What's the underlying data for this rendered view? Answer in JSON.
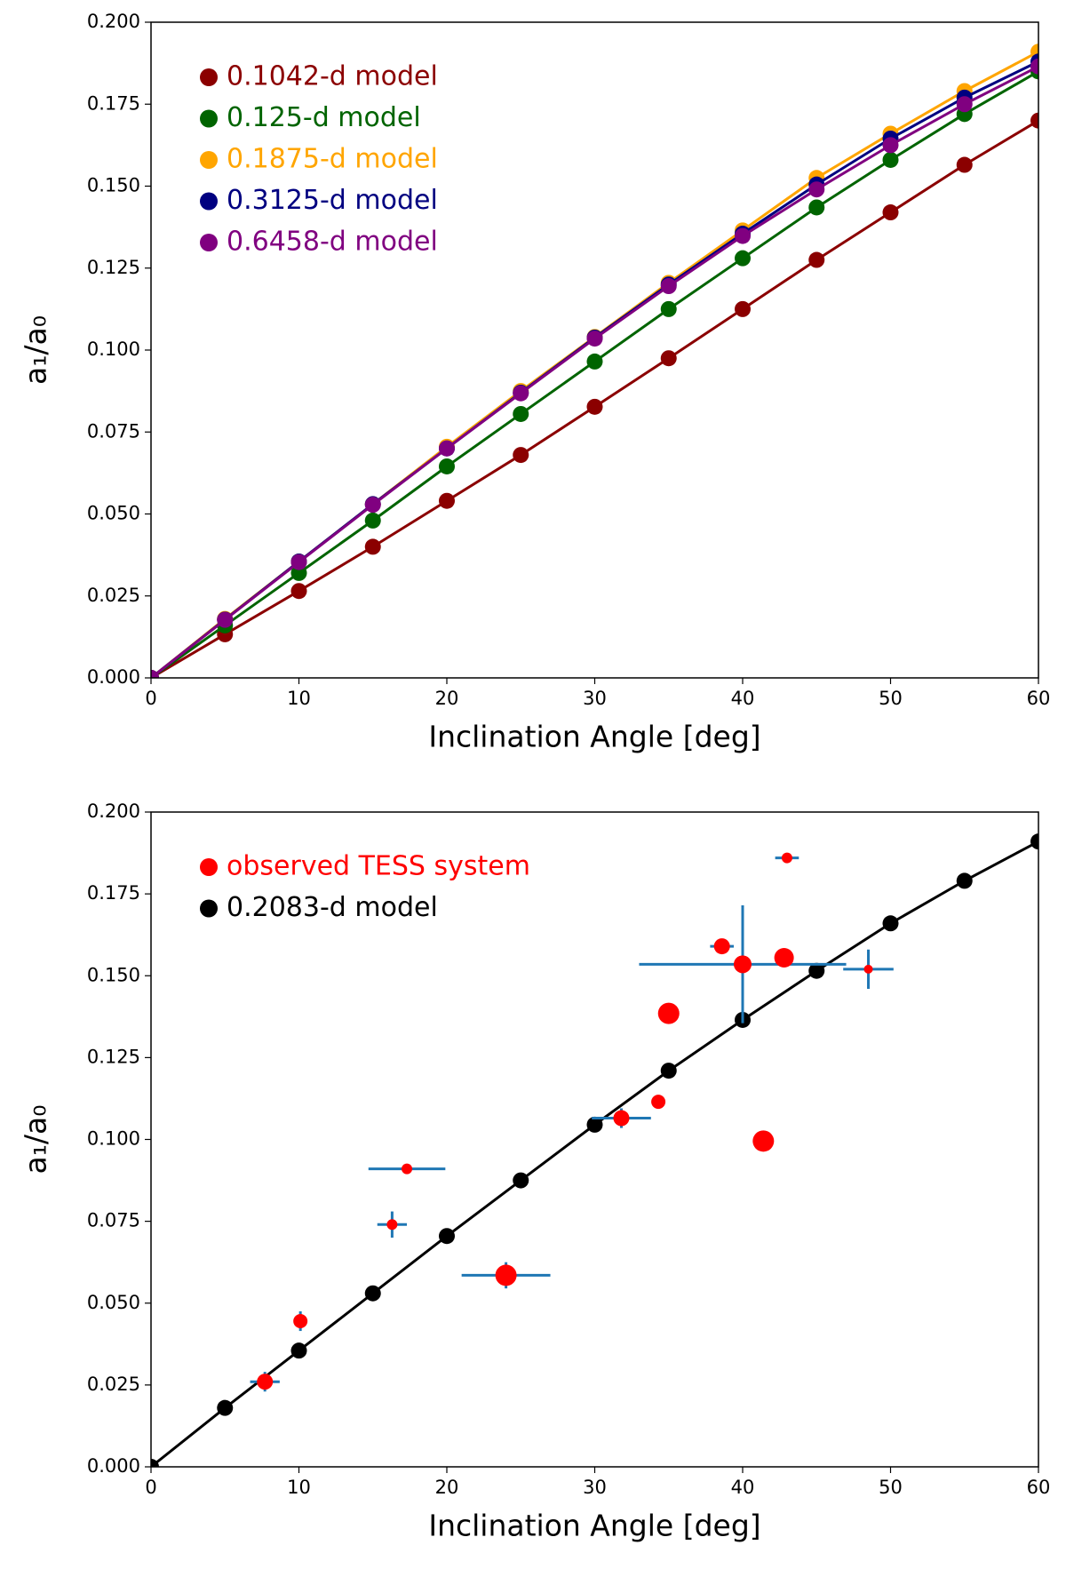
{
  "chart_data": [
    {
      "type": "line",
      "xlabel": "Inclination Angle [deg]",
      "ylabel": "a₁/a₀",
      "xlim": [
        0,
        60
      ],
      "ylim": [
        0,
        0.2
      ],
      "xticks": [
        0,
        10,
        20,
        30,
        40,
        50,
        60
      ],
      "yticks": [
        {
          "value": 0,
          "label": "0.000"
        },
        {
          "value": 0.025,
          "label": "0.025"
        },
        {
          "value": 0.05,
          "label": "0.050"
        },
        {
          "value": 0.075,
          "label": "0.075"
        },
        {
          "value": 0.1,
          "label": "0.100"
        },
        {
          "value": 0.125,
          "label": "0.125"
        },
        {
          "value": 0.15,
          "label": "0.150"
        },
        {
          "value": 0.175,
          "label": "0.175"
        },
        {
          "value": 0.2,
          "label": "0.200"
        }
      ],
      "legend": "upper left",
      "x": [
        0,
        5,
        10,
        15,
        20,
        25,
        30,
        35,
        40,
        45,
        50,
        55,
        60
      ],
      "series": [
        {
          "name": "0.1042-d model",
          "color": "#8b0000",
          "values": [
            0,
            0.0133,
            0.0265,
            0.04,
            0.054,
            0.068,
            0.0827,
            0.0975,
            0.1125,
            0.1275,
            0.142,
            0.1565,
            0.17
          ]
        },
        {
          "name": "0.125-d model",
          "color": "#006400",
          "values": [
            0,
            0.016,
            0.032,
            0.048,
            0.0645,
            0.0805,
            0.0965,
            0.1125,
            0.128,
            0.1435,
            0.158,
            0.172,
            0.185
          ]
        },
        {
          "name": "0.1875-d model",
          "color": "#ffa500",
          "values": [
            0,
            0.018,
            0.0355,
            0.053,
            0.0705,
            0.0875,
            0.104,
            0.1205,
            0.1365,
            0.1525,
            0.166,
            0.179,
            0.191
          ]
        },
        {
          "name": "0.3125-d model",
          "color": "#000080",
          "values": [
            0,
            0.0178,
            0.0355,
            0.053,
            0.07,
            0.087,
            0.1038,
            0.12,
            0.1355,
            0.1505,
            0.1645,
            0.177,
            0.188
          ]
        },
        {
          "name": "0.6458-d model",
          "color": "#800080",
          "values": [
            0,
            0.0177,
            0.0353,
            0.0528,
            0.07,
            0.0868,
            0.1035,
            0.1195,
            0.1348,
            0.149,
            0.1625,
            0.175,
            0.1865
          ]
        }
      ]
    },
    {
      "type": "scatter",
      "xlabel": "Inclination Angle [deg]",
      "ylabel": "a₁/a₀",
      "xlim": [
        0,
        60
      ],
      "ylim": [
        0,
        0.2
      ],
      "xticks": [
        0,
        10,
        20,
        30,
        40,
        50,
        60
      ],
      "yticks": [
        {
          "value": 0,
          "label": "0.000"
        },
        {
          "value": 0.025,
          "label": "0.025"
        },
        {
          "value": 0.05,
          "label": "0.050"
        },
        {
          "value": 0.075,
          "label": "0.075"
        },
        {
          "value": 0.1,
          "label": "0.100"
        },
        {
          "value": 0.125,
          "label": "0.125"
        },
        {
          "value": 0.15,
          "label": "0.150"
        },
        {
          "value": 0.175,
          "label": "0.175"
        },
        {
          "value": 0.2,
          "label": "0.200"
        }
      ],
      "legend": "upper left",
      "x": [
        0,
        5,
        10,
        15,
        20,
        25,
        30,
        35,
        40,
        45,
        50,
        55,
        60
      ],
      "series": [
        {
          "name": "observed TESS system",
          "color": "#ff0000",
          "type": "scatter",
          "error_color": "#1f77b4",
          "x": [
            7.7,
            10.1,
            16.3,
            17.3,
            24,
            31.8,
            34.3,
            35,
            38.6,
            40,
            41.4,
            42.8,
            43,
            48.5
          ],
          "values": [
            0.026,
            0.0445,
            0.074,
            0.091,
            0.0585,
            0.1065,
            0.1115,
            0.1385,
            0.159,
            0.1535,
            0.0995,
            0.1555,
            0.186,
            0.152
          ],
          "xerr": [
            1.0,
            0,
            1.0,
            2.6,
            3.0,
            2.0,
            0,
            0,
            0.8,
            7.0,
            0,
            0,
            0.8,
            1.7
          ],
          "yerr": [
            0.003,
            0.003,
            0.004,
            0,
            0.004,
            0.003,
            0,
            0,
            0,
            0.018,
            0,
            0,
            0,
            0.006
          ],
          "sizes": [
            9,
            8,
            6,
            6,
            12,
            9,
            8,
            12,
            9,
            10,
            12,
            11,
            6,
            5
          ]
        },
        {
          "name": "0.2083-d model",
          "color": "#000000",
          "values": [
            0,
            0.018,
            0.0355,
            0.053,
            0.0705,
            0.0875,
            0.1045,
            0.121,
            0.1365,
            0.1515,
            0.166,
            0.179,
            0.191
          ]
        }
      ]
    }
  ]
}
